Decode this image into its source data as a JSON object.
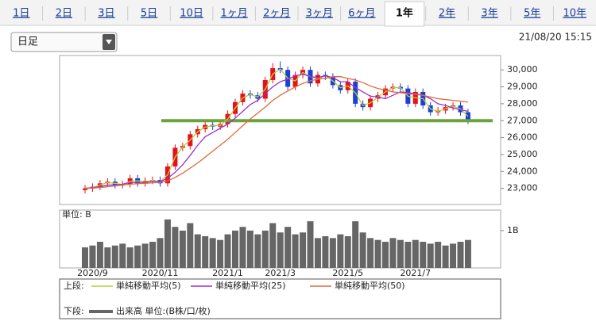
{
  "tabs": [
    "1日",
    "2日",
    "3日",
    "5日",
    "10日",
    "1ヶ月",
    "2ヶ月",
    "3ヶ月",
    "6ヶ月",
    "1年",
    "2年",
    "3年",
    "5年",
    "10年"
  ],
  "selected_tab_index": 9,
  "dropdown": "日足",
  "timestamp": "21/08/20 15:15",
  "legend": {
    "upper_label": "上段:",
    "lower_label": "下段:",
    "lower_text": "出来高 単位:(B株/口/枚)"
  },
  "chart_data": [
    {
      "type": "candlestick",
      "up_color": "#e8101a",
      "down_color": "#1d3fd6",
      "open": [
        22900,
        23000,
        23100,
        23300,
        23400,
        23200,
        23250,
        23600,
        23300,
        23450,
        23500,
        23300,
        24300,
        25400,
        25500,
        26200,
        26500,
        26750,
        26650,
        26800,
        27400,
        28100,
        28600,
        28500,
        28300,
        29400,
        30100,
        30000,
        29000,
        29700,
        30000,
        29200,
        29700,
        29600,
        29100,
        28800,
        29300,
        28000,
        27800,
        28300,
        28500,
        28900,
        29000,
        28900,
        28000,
        28700,
        27900,
        27500,
        27600,
        27800,
        27900,
        27500
      ],
      "high": [
        23200,
        23300,
        23500,
        23600,
        23600,
        23450,
        23800,
        23800,
        23650,
        23700,
        23700,
        24500,
        25600,
        25700,
        26400,
        26700,
        26950,
        26950,
        27000,
        27600,
        28300,
        28800,
        28800,
        28700,
        29600,
        30400,
        30500,
        30200,
        29900,
        30200,
        30200,
        29900,
        29900,
        29800,
        29300,
        29500,
        29500,
        28200,
        28500,
        28700,
        29100,
        29200,
        29200,
        29100,
        28900,
        28900,
        28100,
        27800,
        28000,
        28100,
        28100,
        27700
      ],
      "low": [
        22700,
        22800,
        22900,
        23100,
        23000,
        23000,
        23050,
        23100,
        23100,
        23250,
        23100,
        23100,
        24100,
        25200,
        25300,
        26000,
        26300,
        26450,
        26450,
        26600,
        27200,
        27900,
        28300,
        28100,
        28100,
        29200,
        29800,
        28800,
        28800,
        29500,
        29000,
        29000,
        29400,
        28900,
        28600,
        28600,
        27800,
        27600,
        27600,
        28100,
        28300,
        28700,
        28700,
        27800,
        27800,
        27700,
        27300,
        27300,
        27400,
        27600,
        27300,
        26800
      ],
      "close": [
        23000,
        23100,
        23300,
        23400,
        23200,
        23250,
        23600,
        23300,
        23450,
        23500,
        23300,
        24300,
        25400,
        25500,
        26200,
        26500,
        26750,
        26650,
        26800,
        27400,
        28100,
        28600,
        28500,
        28300,
        29400,
        30100,
        30000,
        29000,
        29700,
        30000,
        29200,
        29700,
        29600,
        29100,
        28800,
        29300,
        28000,
        27800,
        28300,
        28500,
        28900,
        29000,
        28900,
        28000,
        28700,
        27900,
        27500,
        27600,
        27800,
        27900,
        27500,
        27000
      ],
      "series": [
        {
          "name": "単純移動平均(5)",
          "color": "#b5cf3c",
          "values": [
            23000,
            23050,
            23200,
            23350,
            23300,
            23230,
            23420,
            23450,
            23380,
            23480,
            23400,
            23800,
            24850,
            25450,
            25850,
            26350,
            26620,
            26700,
            26720,
            27100,
            27750,
            28350,
            28550,
            28400,
            28850,
            29750,
            30050,
            29500,
            29350,
            29850,
            29600,
            29450,
            29650,
            29350,
            28950,
            29050,
            28650,
            27900,
            28050,
            28400,
            28700,
            28950,
            28950,
            28450,
            28350,
            28300,
            27700,
            27550,
            27700,
            27850,
            27700,
            27250
          ]
        },
        {
          "name": "単純移動平均(25)",
          "color": "#9b30d0",
          "values": [
            23000,
            23050,
            23100,
            23200,
            23200,
            23250,
            23350,
            23350,
            23350,
            23420,
            23400,
            23600,
            23950,
            24400,
            24950,
            25550,
            26050,
            26300,
            26550,
            26800,
            27150,
            27550,
            27950,
            28200,
            28600,
            29000,
            29300,
            29450,
            29650,
            29750,
            29600,
            29550,
            29650,
            29550,
            29300,
            29300,
            28950,
            28700,
            28450,
            28400,
            28300,
            28500,
            28700,
            28650,
            28600,
            28500,
            28300,
            28000,
            27900,
            27750,
            27650,
            27550
          ]
        },
        {
          "name": "単純移動平均(50)",
          "color": "#e06a3a",
          "values": [
            23000,
            23020,
            23050,
            23100,
            23150,
            23200,
            23250,
            23280,
            23300,
            23330,
            23350,
            23450,
            23650,
            23900,
            24200,
            24500,
            24850,
            25200,
            25550,
            25900,
            26300,
            26700,
            27100,
            27450,
            27800,
            28200,
            28500,
            28750,
            29000,
            29200,
            29350,
            29450,
            29500,
            29600,
            29600,
            29500,
            29400,
            29250,
            29050,
            28900,
            28800,
            28700,
            28650,
            28600,
            28550,
            28500,
            28400,
            28300,
            28250,
            28200,
            28150,
            28100
          ]
        }
      ],
      "reference_line": 27000,
      "reference_color": "#6aa33a",
      "ylim": [
        22050,
        30850
      ],
      "yticks": [
        {
          "value": 23000,
          "label": "23,000"
        },
        {
          "value": 24000,
          "label": "24,000"
        },
        {
          "value": 25000,
          "label": "25,000"
        },
        {
          "value": 26000,
          "label": "26,000"
        },
        {
          "value": 27000,
          "label": "27,000"
        },
        {
          "value": 28000,
          "label": "28,000"
        },
        {
          "value": 29000,
          "label": "29,000"
        },
        {
          "value": 30000,
          "label": "30,000"
        }
      ]
    },
    {
      "type": "bar",
      "unit_label": "単位: B",
      "color": "#666666",
      "categories": [
        null,
        "2020/9",
        null,
        null,
        null,
        null,
        null,
        null,
        null,
        null,
        "2020/11",
        null,
        null,
        null,
        null,
        null,
        null,
        null,
        null,
        "2021/1",
        null,
        null,
        null,
        null,
        null,
        null,
        "2021/3",
        null,
        null,
        null,
        null,
        null,
        null,
        null,
        null,
        "2021/5",
        null,
        null,
        null,
        null,
        null,
        null,
        null,
        null,
        "2021/7",
        null,
        null,
        null,
        null,
        null,
        null,
        null
      ],
      "values": [
        0.55,
        0.6,
        0.7,
        0.55,
        0.6,
        0.65,
        0.55,
        0.6,
        0.65,
        0.7,
        0.8,
        1.3,
        1.1,
        1.0,
        1.2,
        0.9,
        0.85,
        0.8,
        0.75,
        0.9,
        1.0,
        1.1,
        1.0,
        0.9,
        1.0,
        1.2,
        0.95,
        1.1,
        0.9,
        0.95,
        1.25,
        0.8,
        0.85,
        0.8,
        0.9,
        0.85,
        1.25,
        0.95,
        0.8,
        0.75,
        0.7,
        0.8,
        0.75,
        0.7,
        0.75,
        0.7,
        0.65,
        0.7,
        0.6,
        0.65,
        0.7,
        0.75
      ],
      "ylim": [
        0,
        1.55
      ],
      "yticks": [
        {
          "value": 1,
          "label": "1B"
        }
      ]
    }
  ]
}
